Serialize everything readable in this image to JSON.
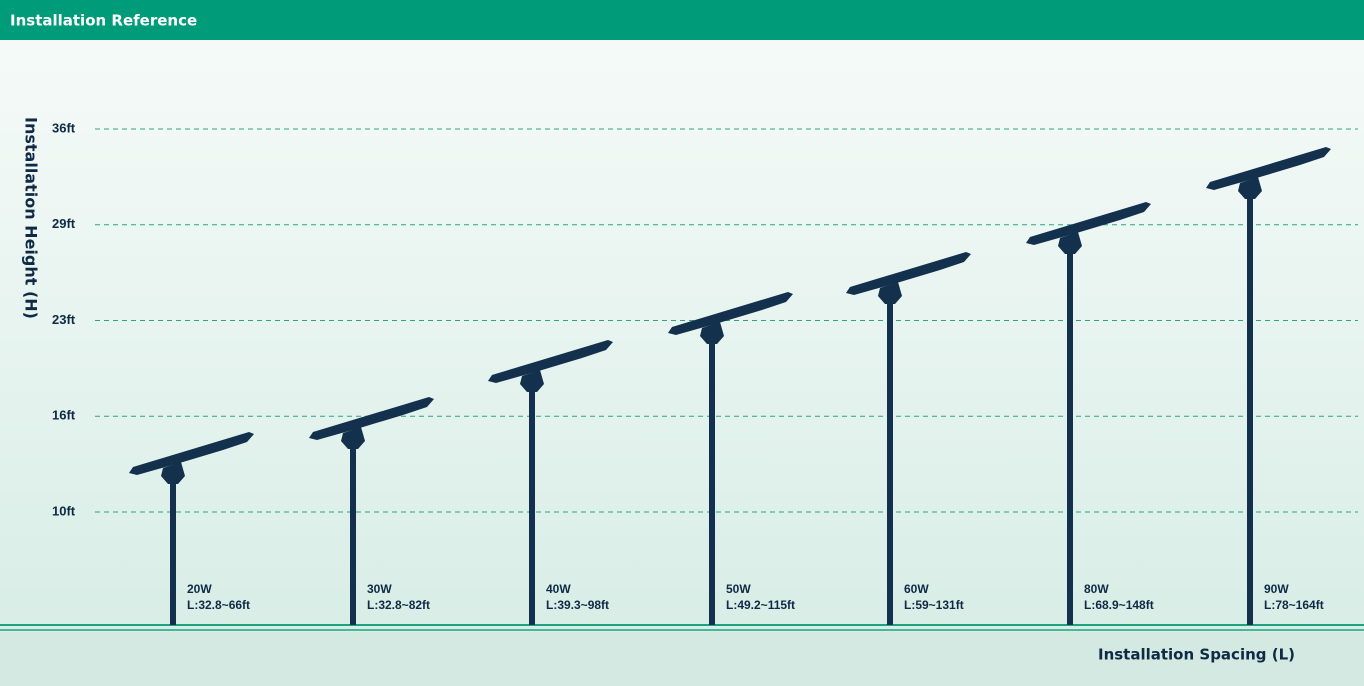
{
  "header": {
    "title": "Installation Reference"
  },
  "y_axis": {
    "label": "Installation Height (H)",
    "ticks": [
      "36ft",
      "29ft",
      "23ft",
      "16ft",
      "10ft"
    ]
  },
  "x_axis": {
    "label": "Installation Spacing (L)"
  },
  "items": [
    {
      "power": "20W",
      "spacing": "L:32.8~66ft"
    },
    {
      "power": "30W",
      "spacing": "L:32.8~82ft"
    },
    {
      "power": "40W",
      "spacing": "L:39.3~98ft"
    },
    {
      "power": "50W",
      "spacing": "L:49.2~115ft"
    },
    {
      "power": "60W",
      "spacing": "L:59~131ft"
    },
    {
      "power": "80W",
      "spacing": "L:68.9~148ft"
    },
    {
      "power": "90W",
      "spacing": "L:78~164ft"
    }
  ]
}
